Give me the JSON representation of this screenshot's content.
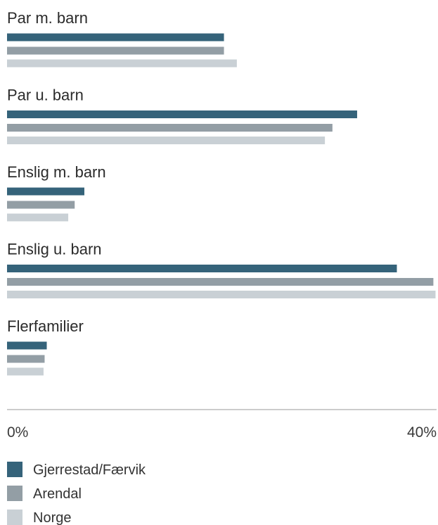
{
  "chart_data": {
    "type": "bar",
    "orientation": "horizontal",
    "categories": [
      "Par m. barn",
      "Par u. barn",
      "Enslig m. barn",
      "Enslig u. barn",
      "Flerfamilier"
    ],
    "series": [
      {
        "name": "Gjerrestad/Færvik",
        "color": "#35637a",
        "values": [
          20.2,
          32.6,
          7.2,
          36.3,
          3.7
        ]
      },
      {
        "name": "Arendal",
        "color": "#939ea5",
        "values": [
          20.2,
          30.3,
          6.3,
          39.7,
          3.5
        ]
      },
      {
        "name": "Norge",
        "color": "#c9d0d5",
        "values": [
          21.4,
          29.6,
          5.7,
          39.9,
          3.4
        ]
      }
    ],
    "xlim": [
      0,
      40
    ],
    "x_ticks": [
      "0%",
      "40%"
    ],
    "grid": false,
    "legend_position": "bottom-left"
  }
}
